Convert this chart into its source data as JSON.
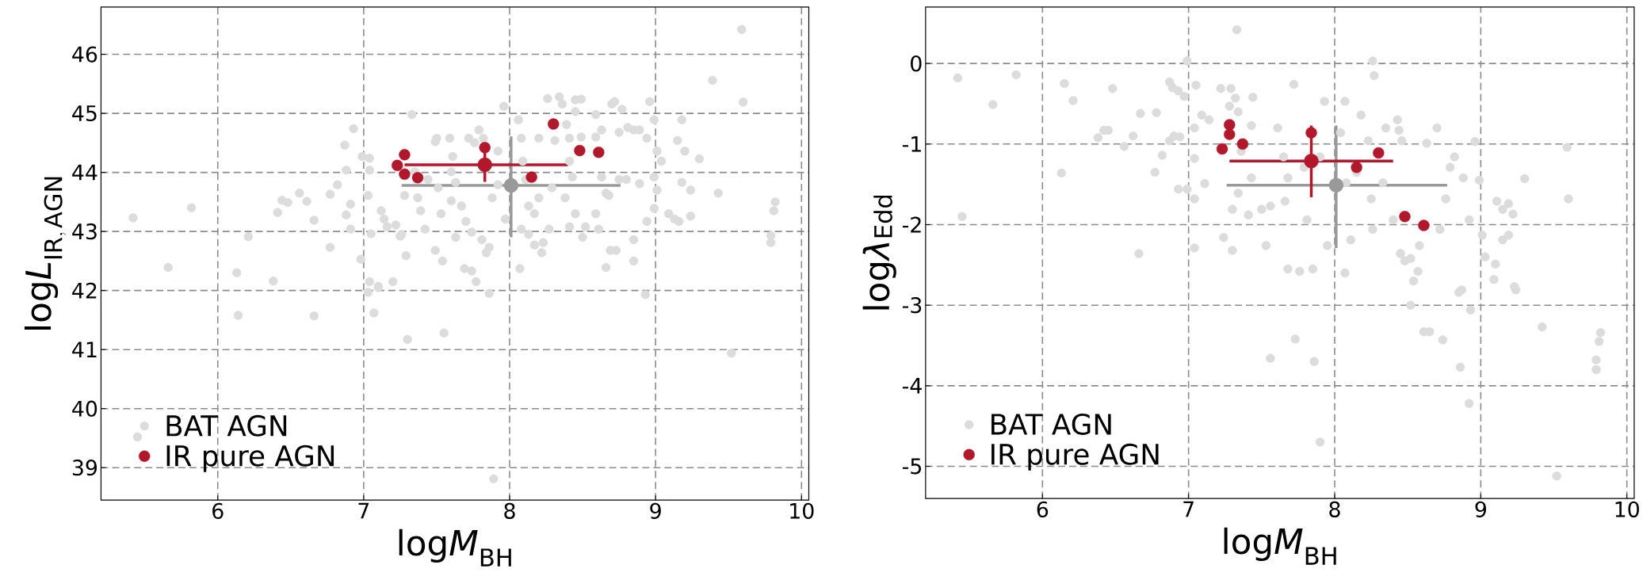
{
  "chart_data": [
    {
      "type": "scatter",
      "xlabel": "\\mathrm{log}\\mathit{M}_{\\mathrm{BH}}",
      "ylabel": "\\mathrm{log}\\mathit{L}_{\\mathrm{IR,\\,AGN}}",
      "xlim": [
        5.2,
        10.05
      ],
      "ylim": [
        38.45,
        46.8
      ],
      "xticks": [
        6,
        7,
        8,
        9,
        10
      ],
      "yticks": [
        39,
        40,
        41,
        42,
        43,
        44,
        45,
        46
      ],
      "grid": true,
      "legend": "bottom left",
      "series": [
        {
          "name": "BAT AGN",
          "color": "#dcdcdc",
          "marker": "circle",
          "x": [
            5.42,
            5.82,
            5.66,
            6.13,
            6.21,
            6.38,
            6.41,
            6.44,
            6.48,
            6.56,
            6.61,
            6.66,
            6.77,
            6.77,
            6.82,
            6.87,
            6.88,
            6.91,
            6.88,
            6.91,
            6.93,
            6.98,
            6.99,
            7.04,
            7.04,
            7.03,
            7.04,
            7.1,
            7.05,
            7.12,
            7.14,
            7.16,
            7.2,
            7.22,
            7.25,
            7.29,
            7.33,
            7.35,
            7.37,
            7.39,
            7.42,
            7.49,
            7.5,
            7.51,
            7.53,
            7.49,
            7.54,
            7.59,
            7.61,
            7.63,
            7.69,
            7.74,
            7.77,
            7.72,
            7.76,
            7.6,
            7.67,
            7.7,
            7.74,
            7.81,
            7.84,
            7.88,
            7.92,
            7.92,
            7.96,
            7.86,
            7.97,
            8.07,
            8.06,
            8.08,
            8.09,
            8.11,
            8.13,
            8.17,
            8.13,
            8.17,
            8.22,
            8.23,
            8.2,
            8.26,
            8.34,
            8.36,
            8.31,
            8.39,
            8.41,
            8.45,
            8.49,
            8.45,
            8.49,
            8.41,
            8.43,
            8.38,
            8.45,
            8.52,
            8.41,
            8.5,
            8.59,
            8.59,
            8.63,
            8.66,
            8.68,
            8.59,
            8.61,
            8.63,
            8.7,
            8.72,
            8.77,
            8.75,
            8.81,
            8.85,
            8.89,
            8.69,
            8.73,
            8.66,
            8.75,
            8.8,
            8.89,
            8.85,
            8.85,
            8.94,
            8.96,
            8.99,
            9.01,
            8.99,
            9.01,
            8.99,
            8.94,
            9.04,
            9.09,
            9.13,
            9.16,
            9.2,
            9.15,
            9.24,
            9.3,
            9.18,
            9.18,
            9.24,
            9.39,
            9.43,
            9.59,
            9.6,
            9.82,
            9.81,
            9.79,
            9.79,
            7.79,
            7.82,
            7.6,
            7.63,
            7.44,
            7.28,
            7.26,
            8.08,
            8.27,
            8.29,
            8.2,
            6.14,
            6.66,
            7.07,
            7.03,
            7.1,
            7.3,
            7.55,
            7.86,
            8.93,
            9.52,
            5.45,
            7.89
          ],
          "values": [
            43.23,
            43.4,
            42.39,
            42.3,
            42.91,
            42.16,
            43.32,
            43.53,
            43.49,
            43.65,
            43.51,
            43.19,
            42.73,
            43.63,
            43.79,
            44.46,
            44.04,
            43.46,
            43.28,
            43.04,
            44.74,
            42.53,
            44.27,
            44.24,
            44.04,
            43.61,
            42.15,
            42.07,
            42.96,
            43.35,
            43.21,
            43.08,
            42.15,
            43.11,
            42.92,
            42.59,
            44.98,
            44.01,
            43.57,
            43.35,
            43.04,
            44.52,
            44.58,
            43.74,
            43.3,
            42.68,
            42.5,
            44.58,
            44.27,
            42.9,
            42.37,
            42.33,
            42.15,
            44.58,
            44.5,
            43.52,
            43.43,
            43.17,
            42.99,
            42.86,
            42.64,
            43.57,
            43.79,
            44.36,
            45.12,
            42.73,
            43.21,
            42.37,
            44.89,
            44.58,
            44.19,
            43.88,
            43.43,
            43.3,
            42.95,
            42.77,
            42.64,
            42.81,
            44.58,
            45.25,
            45.28,
            45.16,
            44.54,
            44.81,
            44.58,
            45.23,
            45.24,
            45.03,
            44.6,
            44.19,
            43.92,
            43.57,
            43.3,
            43.08,
            43.08,
            42.9,
            44.98,
            44.6,
            43.92,
            43.65,
            43.61,
            43.3,
            43.04,
            44.72,
            45.16,
            45.2,
            45.07,
            44.68,
            44.76,
            44.72,
            44.72,
            42.68,
            42.68,
            42.39,
            43.88,
            43.88,
            43.81,
            42.86,
            42.5,
            44.58,
            45.2,
            44.89,
            44.36,
            43.92,
            43.7,
            43.39,
            43.17,
            44.19,
            43.3,
            43.21,
            43.17,
            44.36,
            44.54,
            43.26,
            44.23,
            44.89,
            43.83,
            43.7,
            45.56,
            43.65,
            46.42,
            45.19,
            43.5,
            43.35,
            42.93,
            42.81,
            44.72,
            44.58,
            44.01,
            43.83,
            43.88,
            43.61,
            42.95,
            43.04,
            43.04,
            43.74,
            43.57,
            41.58,
            41.57,
            41.62,
            41.97,
            42.05,
            41.17,
            41.28,
            41.95,
            41.93,
            40.94,
            39.52,
            38.81
          ]
        },
        {
          "name": "IR pure AGN",
          "color": "#b2182b",
          "marker": "circle",
          "x": [
            7.23,
            7.28,
            7.28,
            7.37,
            7.83,
            8.15,
            8.3,
            8.48,
            8.61
          ],
          "values": [
            44.12,
            44.3,
            43.97,
            43.91,
            44.42,
            43.92,
            44.82,
            44.37,
            44.34
          ]
        },
        {
          "color": "#999999",
          "marker": "circle",
          "x": [
            8.01
          ],
          "values": [
            43.78
          ],
          "errors": [
            [
              42.9,
              44.61
            ]
          ],
          "xerrors": [
            [
              7.26,
              8.76
            ]
          ]
        },
        {
          "color": "#b2182b",
          "marker": "circle",
          "x": [
            7.83
          ],
          "values": [
            44.13
          ],
          "errors": [
            0.29
          ],
          "xerrors": [
            [
              7.28,
              8.4
            ]
          ]
        }
      ]
    },
    {
      "type": "scatter",
      "xlabel": "\\mathrm{log}\\mathit{M}_{\\mathrm{BH}}",
      "ylabel": "\\mathrm{log}\\text{\\itshape λ}_{\\mathrm{Edd}}",
      "xlim": [
        5.2,
        10.05
      ],
      "ylim": [
        -5.4,
        0.7
      ],
      "xticks": [
        6,
        7,
        8,
        9,
        10
      ],
      "yticks": [
        -5,
        -4,
        -3,
        -2,
        -1,
        0
      ],
      "grid": true,
      "legend": "bottom left",
      "series": [
        {
          "name": "BAT AGN",
          "color": "#dcdcdc",
          "marker": "circle",
          "x": [
            5.42,
            5.66,
            5.82,
            5.45,
            6.15,
            6.21,
            6.13,
            6.38,
            6.42,
            6.45,
            6.48,
            6.56,
            6.62,
            6.66,
            6.67,
            6.78,
            6.77,
            6.82,
            6.87,
            6.89,
            6.93,
            6.87,
            6.9,
            6.94,
            6.97,
            6.99,
            6.93,
            6.99,
            7.04,
            7.04,
            7.05,
            7.04,
            7.09,
            7.14,
            7.04,
            7.11,
            7.22,
            7.29,
            7.32,
            7.28,
            7.34,
            7.33,
            7.24,
            7.3,
            7.3,
            7.34,
            7.36,
            7.44,
            7.43,
            7.41,
            7.43,
            7.5,
            7.53,
            7.56,
            7.61,
            7.66,
            7.68,
            7.72,
            7.76,
            7.79,
            7.81,
            7.85,
            7.93,
            7.95,
            8.07,
            8.04,
            8.07,
            8.11,
            8.18,
            8.23,
            8.26,
            8.27,
            8.25,
            8.26,
            8.35,
            8.4,
            8.43,
            8.44,
            8.46,
            8.45,
            8.48,
            8.52,
            8.54,
            8.57,
            8.58,
            8.63,
            8.7,
            8.72,
            8.76,
            8.79,
            8.82,
            8.88,
            8.92,
            8.96,
            8.99,
            9.01,
            9.03,
            9.11,
            9.15,
            9.19,
            9.22,
            9.1,
            9.15,
            9.19,
            9.23,
            9.3,
            9.59,
            9.6,
            9.09,
            8.87,
            8.08,
            8.15,
            7.9,
            7.68,
            7.65,
            8.33,
            8.85,
            9.24,
            8.52,
            8.93,
            8.61,
            8.65,
            8.74,
            9.42,
            9.82,
            9.81,
            9.79,
            9.79,
            7.56,
            7.73,
            7.86,
            8.86,
            8.92,
            7.9,
            9.52
          ],
          "values": [
            -0.18,
            -0.51,
            -0.14,
            -1.9,
            -0.25,
            -0.46,
            -1.36,
            -0.92,
            -0.83,
            -0.83,
            -0.31,
            -1.03,
            -0.9,
            -2.36,
            -0.62,
            -0.61,
            -1.35,
            -1.14,
            -0.23,
            -0.3,
            -0.34,
            -0.96,
            -0.9,
            -0.91,
            -0.41,
            0.03,
            -1.56,
            -1.56,
            -1.68,
            -1.18,
            -0.27,
            -0.8,
            -0.64,
            -0.7,
            -2.29,
            -1.49,
            -0.31,
            -0.31,
            -0.43,
            -0.53,
            -0.6,
            0.42,
            -2.16,
            -2.32,
            -1.81,
            -1.61,
            -1.09,
            -0.42,
            -0.77,
            -1.88,
            -1.42,
            -1.81,
            -2.26,
            -1.77,
            -0.8,
            -1.71,
            -2.55,
            -0.26,
            -2.58,
            -1.29,
            -1.94,
            -2.55,
            -0.47,
            -2.26,
            -0.47,
            -0.86,
            -2.6,
            -2.19,
            -0.64,
            -0.96,
            0.03,
            -0.15,
            -1.68,
            -2.06,
            -0.8,
            -1.94,
            -0.7,
            -0.83,
            -0.96,
            -2.36,
            -2.45,
            -2.42,
            -2.7,
            -2.58,
            -2.26,
            -0.99,
            -0.8,
            -2.06,
            -1.68,
            -1.29,
            -1.16,
            -1.42,
            -1.94,
            -0.97,
            -1.45,
            -2.13,
            -2.4,
            -1.71,
            -1.81,
            -1.74,
            -1.87,
            -2.49,
            -2.19,
            -2.13,
            -2.77,
            -1.43,
            -1.04,
            -1.68,
            -2.68,
            -2.81,
            -1.48,
            -1.35,
            -1.16,
            -1.42,
            -1.16,
            -1.48,
            -2.84,
            -2.81,
            -3.0,
            -3.06,
            -3.33,
            -3.33,
            -3.43,
            -3.27,
            -3.34,
            -3.45,
            -3.68,
            -3.8,
            -3.66,
            -3.42,
            -3.7,
            -3.77,
            -4.22,
            -4.7,
            -5.12
          ]
        },
        {
          "name": "IR pure AGN",
          "color": "#b2182b",
          "marker": "circle",
          "x": [
            7.23,
            7.28,
            7.28,
            7.37,
            7.84,
            8.15,
            8.3,
            8.48,
            8.61
          ],
          "values": [
            -1.06,
            -0.76,
            -0.88,
            -1.0,
            -0.86,
            -1.29,
            -1.11,
            -1.9,
            -2.01
          ]
        },
        {
          "color": "#999999",
          "marker": "circle",
          "x": [
            8.01
          ],
          "values": [
            -1.51
          ],
          "errors": [
            [
              -2.29,
              -0.77
            ]
          ],
          "xerrors": [
            [
              7.26,
              8.77
            ]
          ]
        },
        {
          "color": "#b2182b",
          "marker": "circle",
          "x": [
            7.84
          ],
          "values": [
            -1.21
          ],
          "errors": [
            [
              -1.66,
              -0.77
            ]
          ],
          "xerrors": [
            [
              7.28,
              8.4
            ]
          ]
        }
      ]
    }
  ]
}
